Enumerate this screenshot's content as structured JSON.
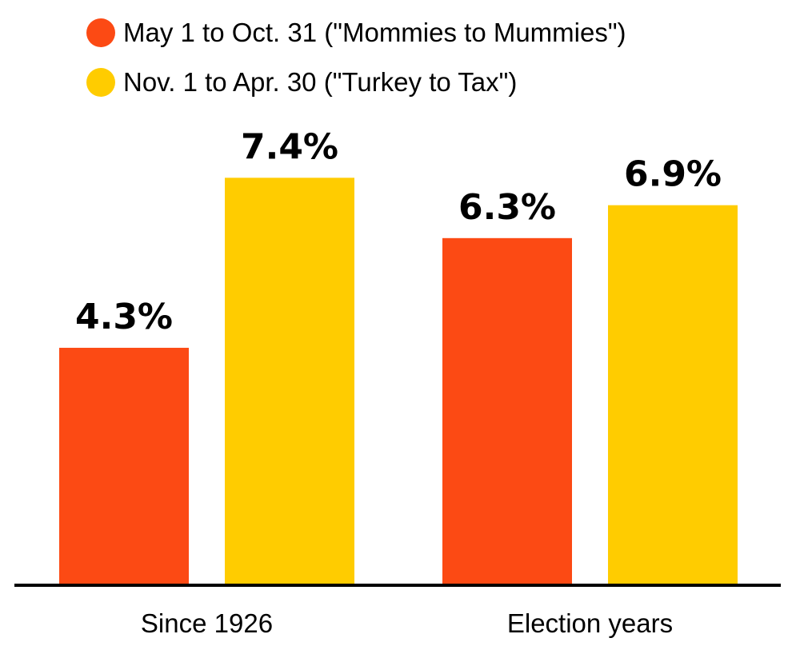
{
  "chart_data": {
    "type": "bar",
    "categories": [
      "Since 1926",
      "Election years"
    ],
    "series": [
      {
        "name": "May 1 to Oct. 31 (\"Mommies to Mummies\")",
        "color": "#fc4a14",
        "values": [
          4.3,
          6.3
        ]
      },
      {
        "name": "Nov. 1 to Apr. 30 (\"Turkey to Tax\")",
        "color": "#ffcc00",
        "values": [
          7.4,
          6.9
        ]
      }
    ],
    "value_labels": [
      [
        "4.3%",
        "6.3%"
      ],
      [
        "7.4%",
        "6.9%"
      ]
    ],
    "title": "",
    "xlabel": "",
    "ylabel": "",
    "ylim": [
      0,
      8.5
    ],
    "grid": false,
    "legend_position": "top-left"
  }
}
